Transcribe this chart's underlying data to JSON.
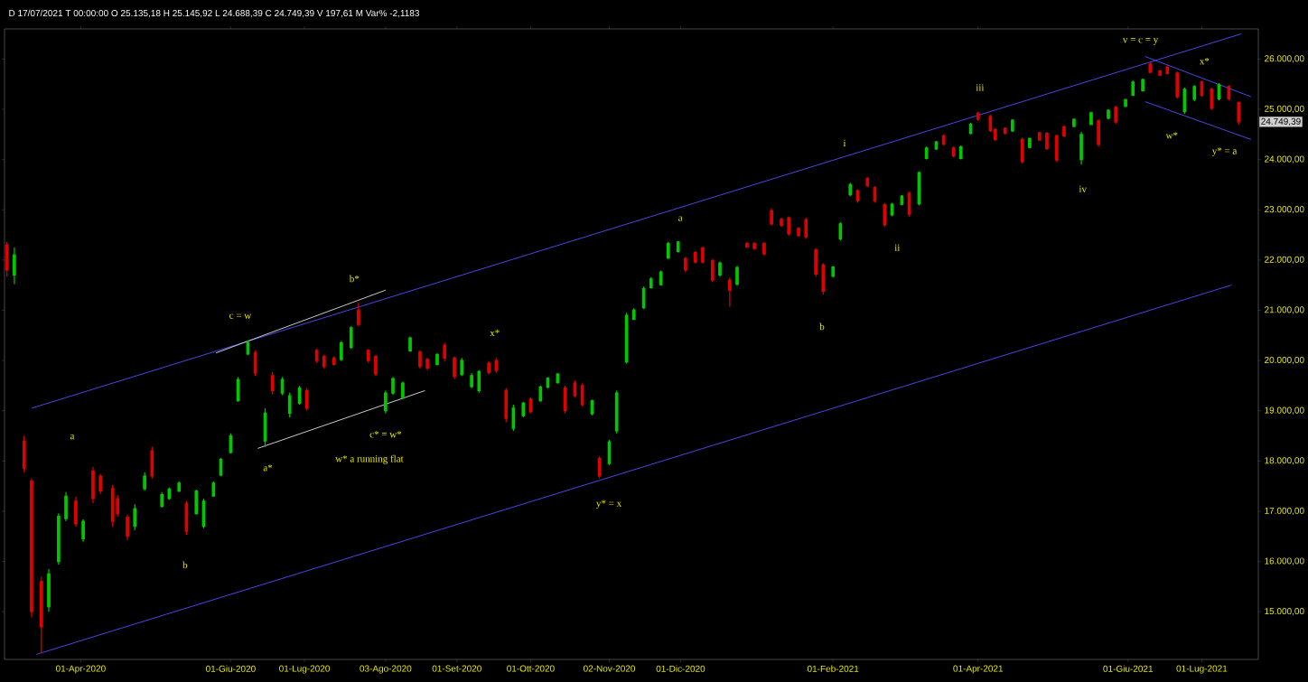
{
  "chart_data": {
    "type": "candlestick",
    "subtitle": "D 17/07/2021 T 00:00:00 O 25.135,18 H 25.145,92 L 24.688,39 C 24.749,39 V 197,61 M Var% -2,1183",
    "x": [
      "2020-03-02",
      "2020-03-05",
      "2020-03-09",
      "2020-03-12",
      "2020-03-16",
      "2020-03-19",
      "2020-03-23",
      "2020-03-26",
      "2020-03-30",
      "2020-04-02",
      "2020-04-06",
      "2020-04-09",
      "2020-04-14",
      "2020-04-16",
      "2020-04-20",
      "2020-04-23",
      "2020-04-27",
      "2020-04-30",
      "2020-05-04",
      "2020-05-07",
      "2020-05-11",
      "2020-05-14",
      "2020-05-18",
      "2020-05-21",
      "2020-05-25",
      "2020-05-28",
      "2020-06-01",
      "2020-06-04",
      "2020-06-08",
      "2020-06-11",
      "2020-06-15",
      "2020-06-18",
      "2020-06-22",
      "2020-06-25",
      "2020-06-29",
      "2020-07-02",
      "2020-07-06",
      "2020-07-09",
      "2020-07-13",
      "2020-07-16",
      "2020-07-20",
      "2020-07-23",
      "2020-07-27",
      "2020-07-30",
      "2020-08-03",
      "2020-08-06",
      "2020-08-10",
      "2020-08-13",
      "2020-08-17",
      "2020-08-20",
      "2020-08-24",
      "2020-08-27",
      "2020-08-31",
      "2020-09-03",
      "2020-09-07",
      "2020-09-10",
      "2020-09-14",
      "2020-09-17",
      "2020-09-21",
      "2020-09-24",
      "2020-09-28",
      "2020-10-01",
      "2020-10-05",
      "2020-10-08",
      "2020-10-12",
      "2020-10-15",
      "2020-10-19",
      "2020-10-22",
      "2020-10-26",
      "2020-10-29",
      "2020-11-02",
      "2020-11-05",
      "2020-11-09",
      "2020-11-12",
      "2020-11-16",
      "2020-11-19",
      "2020-11-23",
      "2020-11-26",
      "2020-11-30",
      "2020-12-03",
      "2020-12-07",
      "2020-12-10",
      "2020-12-14",
      "2020-12-17",
      "2020-12-21",
      "2020-12-24",
      "2020-12-28",
      "2020-12-31",
      "2021-01-04",
      "2021-01-07",
      "2021-01-11",
      "2021-01-14",
      "2021-01-18",
      "2021-01-21",
      "2021-01-25",
      "2021-01-28",
      "2021-02-01",
      "2021-02-04",
      "2021-02-08",
      "2021-02-11",
      "2021-02-15",
      "2021-02-18",
      "2021-02-22",
      "2021-02-25",
      "2021-03-01",
      "2021-03-04",
      "2021-03-08",
      "2021-03-11",
      "2021-03-15",
      "2021-03-18",
      "2021-03-22",
      "2021-03-25",
      "2021-03-29",
      "2021-04-01",
      "2021-04-06",
      "2021-04-08",
      "2021-04-12",
      "2021-04-15",
      "2021-04-19",
      "2021-04-22",
      "2021-04-26",
      "2021-04-29",
      "2021-05-03",
      "2021-05-06",
      "2021-05-10",
      "2021-05-13",
      "2021-05-17",
      "2021-05-20",
      "2021-05-24",
      "2021-05-27",
      "2021-05-31",
      "2021-06-03",
      "2021-06-07",
      "2021-06-10",
      "2021-06-14",
      "2021-06-17",
      "2021-06-21",
      "2021-06-24",
      "2021-06-28",
      "2021-07-01",
      "2021-07-05",
      "2021-07-08",
      "2021-07-12",
      "2021-07-16"
    ],
    "ohlc": [
      [
        22300,
        22360,
        21670,
        21800
      ],
      [
        21700,
        22250,
        21520,
        22100
      ],
      [
        18400,
        18500,
        17770,
        17850
      ],
      [
        17600,
        17650,
        14890,
        15000
      ],
      [
        15600,
        15700,
        14170,
        14700
      ],
      [
        15100,
        15850,
        15000,
        15750
      ],
      [
        16000,
        16960,
        15940,
        16900
      ],
      [
        16850,
        17380,
        16800,
        17300
      ],
      [
        17200,
        17290,
        16690,
        16750
      ],
      [
        16450,
        16840,
        16390,
        16800
      ],
      [
        17800,
        17880,
        17160,
        17250
      ],
      [
        17700,
        17740,
        17340,
        17400
      ],
      [
        17450,
        17520,
        16690,
        16800
      ],
      [
        17250,
        17320,
        16890,
        16950
      ],
      [
        16880,
        16930,
        16420,
        16500
      ],
      [
        16700,
        17140,
        16620,
        17050
      ],
      [
        17450,
        17770,
        17410,
        17700
      ],
      [
        18200,
        18280,
        17650,
        17700
      ],
      [
        17100,
        17380,
        17070,
        17330
      ],
      [
        17250,
        17470,
        17230,
        17440
      ],
      [
        17400,
        17590,
        17380,
        17560
      ],
      [
        17150,
        17200,
        16530,
        16600
      ],
      [
        16950,
        17430,
        16930,
        17400
      ],
      [
        16700,
        17250,
        16660,
        17200
      ],
      [
        17300,
        17590,
        17290,
        17560
      ],
      [
        17720,
        18060,
        17700,
        18030
      ],
      [
        18170,
        18550,
        18150,
        18500
      ],
      [
        19200,
        19670,
        19180,
        19620
      ],
      [
        20130,
        20400,
        20110,
        20350
      ],
      [
        20150,
        20200,
        19690,
        19750
      ],
      [
        18400,
        19050,
        18280,
        18950
      ],
      [
        19700,
        19770,
        19320,
        19400
      ],
      [
        19350,
        19670,
        19310,
        19620
      ],
      [
        18950,
        19360,
        18870,
        19300
      ],
      [
        19150,
        19500,
        19120,
        19450
      ],
      [
        19400,
        19450,
        19000,
        19050
      ],
      [
        20200,
        20230,
        19950,
        20000
      ],
      [
        20080,
        20110,
        19840,
        19880
      ],
      [
        20050,
        20080,
        19900,
        19920
      ],
      [
        20020,
        20390,
        19990,
        20350
      ],
      [
        20260,
        20680,
        20230,
        20650
      ],
      [
        21000,
        21150,
        20680,
        20720
      ],
      [
        20200,
        20230,
        19950,
        20000
      ],
      [
        20080,
        20110,
        19690,
        19730
      ],
      [
        19000,
        19400,
        18950,
        19350
      ],
      [
        19350,
        19670,
        19320,
        19640
      ],
      [
        19260,
        19580,
        19230,
        19550
      ],
      [
        20190,
        20480,
        20170,
        20450
      ],
      [
        20170,
        20200,
        19840,
        19880
      ],
      [
        20020,
        20050,
        19810,
        19850
      ],
      [
        19920,
        20140,
        19900,
        20120
      ],
      [
        20300,
        20350,
        19990,
        20050
      ],
      [
        20050,
        20080,
        19630,
        19680
      ],
      [
        19720,
        20050,
        19690,
        20000
      ],
      [
        19480,
        19750,
        19450,
        19700
      ],
      [
        19400,
        19810,
        19360,
        19780
      ],
      [
        19950,
        19990,
        19720,
        19760
      ],
      [
        20000,
        20050,
        19750,
        19800
      ],
      [
        19400,
        19450,
        18770,
        18850
      ],
      [
        18650,
        19120,
        18600,
        19050
      ],
      [
        18900,
        19180,
        18870,
        19150
      ],
      [
        19230,
        19270,
        18950,
        18980
      ],
      [
        19200,
        19500,
        19180,
        19470
      ],
      [
        19470,
        19670,
        19450,
        19650
      ],
      [
        19560,
        19750,
        19540,
        19730
      ],
      [
        19450,
        19500,
        18950,
        19000
      ],
      [
        19550,
        19600,
        19270,
        19300
      ],
      [
        19500,
        19540,
        19090,
        19120
      ],
      [
        18940,
        19220,
        18910,
        19200
      ],
      [
        18050,
        18100,
        17650,
        17700
      ],
      [
        17950,
        18420,
        17920,
        18380
      ],
      [
        18600,
        19400,
        18550,
        19350
      ],
      [
        19970,
        20950,
        19940,
        20900
      ],
      [
        20820,
        21040,
        20800,
        21000
      ],
      [
        21050,
        21470,
        21020,
        21430
      ],
      [
        21450,
        21660,
        21430,
        21620
      ],
      [
        21510,
        21790,
        21490,
        21760
      ],
      [
        22040,
        22360,
        22020,
        22330
      ],
      [
        22170,
        22380,
        22150,
        22360
      ],
      [
        22030,
        22060,
        21760,
        21800
      ],
      [
        22150,
        22180,
        21930,
        21960
      ],
      [
        22240,
        22270,
        21930,
        21960
      ],
      [
        21990,
        22020,
        21560,
        21600
      ],
      [
        21700,
        21970,
        21670,
        21940
      ],
      [
        21600,
        21650,
        21070,
        21400
      ],
      [
        21520,
        21880,
        21490,
        21850
      ],
      [
        22330,
        22360,
        22240,
        22260
      ],
      [
        22330,
        22360,
        22200,
        22230
      ],
      [
        22330,
        22360,
        22090,
        22120
      ],
      [
        22980,
        23020,
        22690,
        22720
      ],
      [
        22810,
        22840,
        22660,
        22690
      ],
      [
        22840,
        22870,
        22480,
        22520
      ],
      [
        22630,
        22660,
        22460,
        22490
      ],
      [
        22800,
        22840,
        22420,
        22460
      ],
      [
        22200,
        22240,
        21670,
        21720
      ],
      [
        21900,
        21940,
        21310,
        21380
      ],
      [
        21680,
        21880,
        21650,
        21860
      ],
      [
        22420,
        22750,
        22390,
        22720
      ],
      [
        23300,
        23540,
        23270,
        23500
      ],
      [
        23380,
        23410,
        23140,
        23180
      ],
      [
        23620,
        23650,
        23450,
        23480
      ],
      [
        23440,
        23470,
        23140,
        23180
      ],
      [
        23100,
        23140,
        22660,
        22700
      ],
      [
        22900,
        23140,
        22870,
        23110
      ],
      [
        23110,
        23290,
        23090,
        23270
      ],
      [
        23330,
        23360,
        22870,
        22910
      ],
      [
        23120,
        23770,
        23090,
        23740
      ],
      [
        24020,
        24260,
        24000,
        24230
      ],
      [
        24210,
        24370,
        24190,
        24350
      ],
      [
        24470,
        24500,
        24280,
        24310
      ],
      [
        24230,
        24260,
        24040,
        24070
      ],
      [
        24020,
        24280,
        24000,
        24250
      ],
      [
        24520,
        24730,
        24500,
        24700
      ],
      [
        24920,
        24950,
        24770,
        24800
      ],
      [
        24860,
        24890,
        24550,
        24580
      ],
      [
        24600,
        24620,
        24370,
        24400
      ],
      [
        24620,
        24640,
        24500,
        24520
      ],
      [
        24570,
        24800,
        24550,
        24780
      ],
      [
        24400,
        24440,
        23920,
        23960
      ],
      [
        24240,
        24440,
        24220,
        24420
      ],
      [
        24530,
        24550,
        24370,
        24390
      ],
      [
        24520,
        24550,
        24190,
        24220
      ],
      [
        24470,
        24500,
        23950,
        23990
      ],
      [
        24650,
        24680,
        24440,
        24470
      ],
      [
        24660,
        24820,
        24640,
        24800
      ],
      [
        24000,
        24550,
        23900,
        24500
      ],
      [
        24700,
        24950,
        24680,
        24930
      ],
      [
        24770,
        24800,
        24260,
        24300
      ],
      [
        24820,
        25000,
        24800,
        24980
      ],
      [
        25040,
        25070,
        24710,
        24750
      ],
      [
        25060,
        25210,
        25040,
        25190
      ],
      [
        25280,
        25570,
        25260,
        25540
      ],
      [
        25370,
        25610,
        25350,
        25590
      ],
      [
        25900,
        25930,
        25710,
        25740
      ],
      [
        25760,
        25780,
        25660,
        25680
      ],
      [
        25840,
        25870,
        25690,
        25710
      ],
      [
        25720,
        25750,
        25210,
        25250
      ],
      [
        24950,
        25430,
        24910,
        25400
      ],
      [
        25200,
        25480,
        25160,
        25450
      ],
      [
        25540,
        25570,
        25250,
        25280
      ],
      [
        25400,
        25430,
        24980,
        25020
      ],
      [
        25210,
        25520,
        25180,
        25490
      ],
      [
        25450,
        25480,
        25180,
        25210
      ],
      [
        25135.18,
        25145.92,
        24688.39,
        24749.39
      ]
    ],
    "series": [
      {
        "type": "line",
        "color": "#4f4fff",
        "x": [
          "2020-03-12",
          "2021-07-17"
        ],
        "values": [
          19050,
          26500
        ]
      },
      {
        "type": "line",
        "color": "#4f4fff",
        "x": [
          "2020-03-14",
          "2021-07-13"
        ],
        "values": [
          14150,
          21500
        ]
      },
      {
        "type": "line",
        "color": "#e0e0e0",
        "x": [
          "2020-05-26",
          "2020-08-03"
        ],
        "values": [
          20150,
          21400
        ]
      },
      {
        "type": "line",
        "color": "#e0e0e0",
        "x": [
          "2020-06-12",
          "2020-08-19"
        ],
        "values": [
          18250,
          19400
        ]
      },
      {
        "type": "line",
        "color": "#4f4fff",
        "x": [
          "2021-06-08",
          "2021-07-21"
        ],
        "values": [
          26050,
          25250
        ]
      },
      {
        "type": "line",
        "color": "#4f4fff",
        "x": [
          "2021-06-08",
          "2021-07-21"
        ],
        "values": [
          25150,
          24400
        ]
      }
    ],
    "xlim": [
      "2020-03-01",
      "2021-07-24"
    ],
    "ylim": [
      14050,
      26600
    ],
    "xticks": [
      {
        "value": "2020-04-01",
        "label": "01-Apr-2020"
      },
      {
        "value": "2020-06-01",
        "label": "01-Giu-2020"
      },
      {
        "value": "2020-07-01",
        "label": "01-Lug-2020"
      },
      {
        "value": "2020-08-03",
        "label": "03-Ago-2020"
      },
      {
        "value": "2020-09-01",
        "label": "01-Set-2020"
      },
      {
        "value": "2020-10-01",
        "label": "01-Ott-2020"
      },
      {
        "value": "2020-11-02",
        "label": "02-Nov-2020"
      },
      {
        "value": "2020-12-01",
        "label": "01-Dic-2020"
      },
      {
        "value": "2021-02-01",
        "label": "01-Feb-2021"
      },
      {
        "value": "2021-04-01",
        "label": "01-Apr-2021"
      },
      {
        "value": "2021-06-01",
        "label": "01-Giu-2021"
      },
      {
        "value": "2021-07-01",
        "label": "01-Lug-2021"
      }
    ],
    "yticks": [
      {
        "value": 15000,
        "label": "15.000,00"
      },
      {
        "value": 16000,
        "label": "16.000,00"
      },
      {
        "value": 17000,
        "label": "17.000,00"
      },
      {
        "value": 18000,
        "label": "18.000,00"
      },
      {
        "value": 19000,
        "label": "19.000,00"
      },
      {
        "value": 20000,
        "label": "20.000,00"
      },
      {
        "value": 21000,
        "label": "21.000,00"
      },
      {
        "value": 22000,
        "label": "22.000,00"
      },
      {
        "value": 23000,
        "label": "23.000,00"
      },
      {
        "value": 24000,
        "label": "24.000,00"
      },
      {
        "value": 25000,
        "label": "25.000,00"
      },
      {
        "value": 26000,
        "label": "26.000,00"
      }
    ],
    "annotations": [
      "a",
      "b",
      "c = w",
      "a*",
      "b*",
      "c* = w*",
      "w* a running flat",
      "x*",
      "y* = x",
      "a",
      "b",
      "i",
      "ii",
      "iii",
      "iv",
      "v = c = y",
      "x*",
      "w*",
      "y* = a",
      "24.749,39"
    ]
  }
}
